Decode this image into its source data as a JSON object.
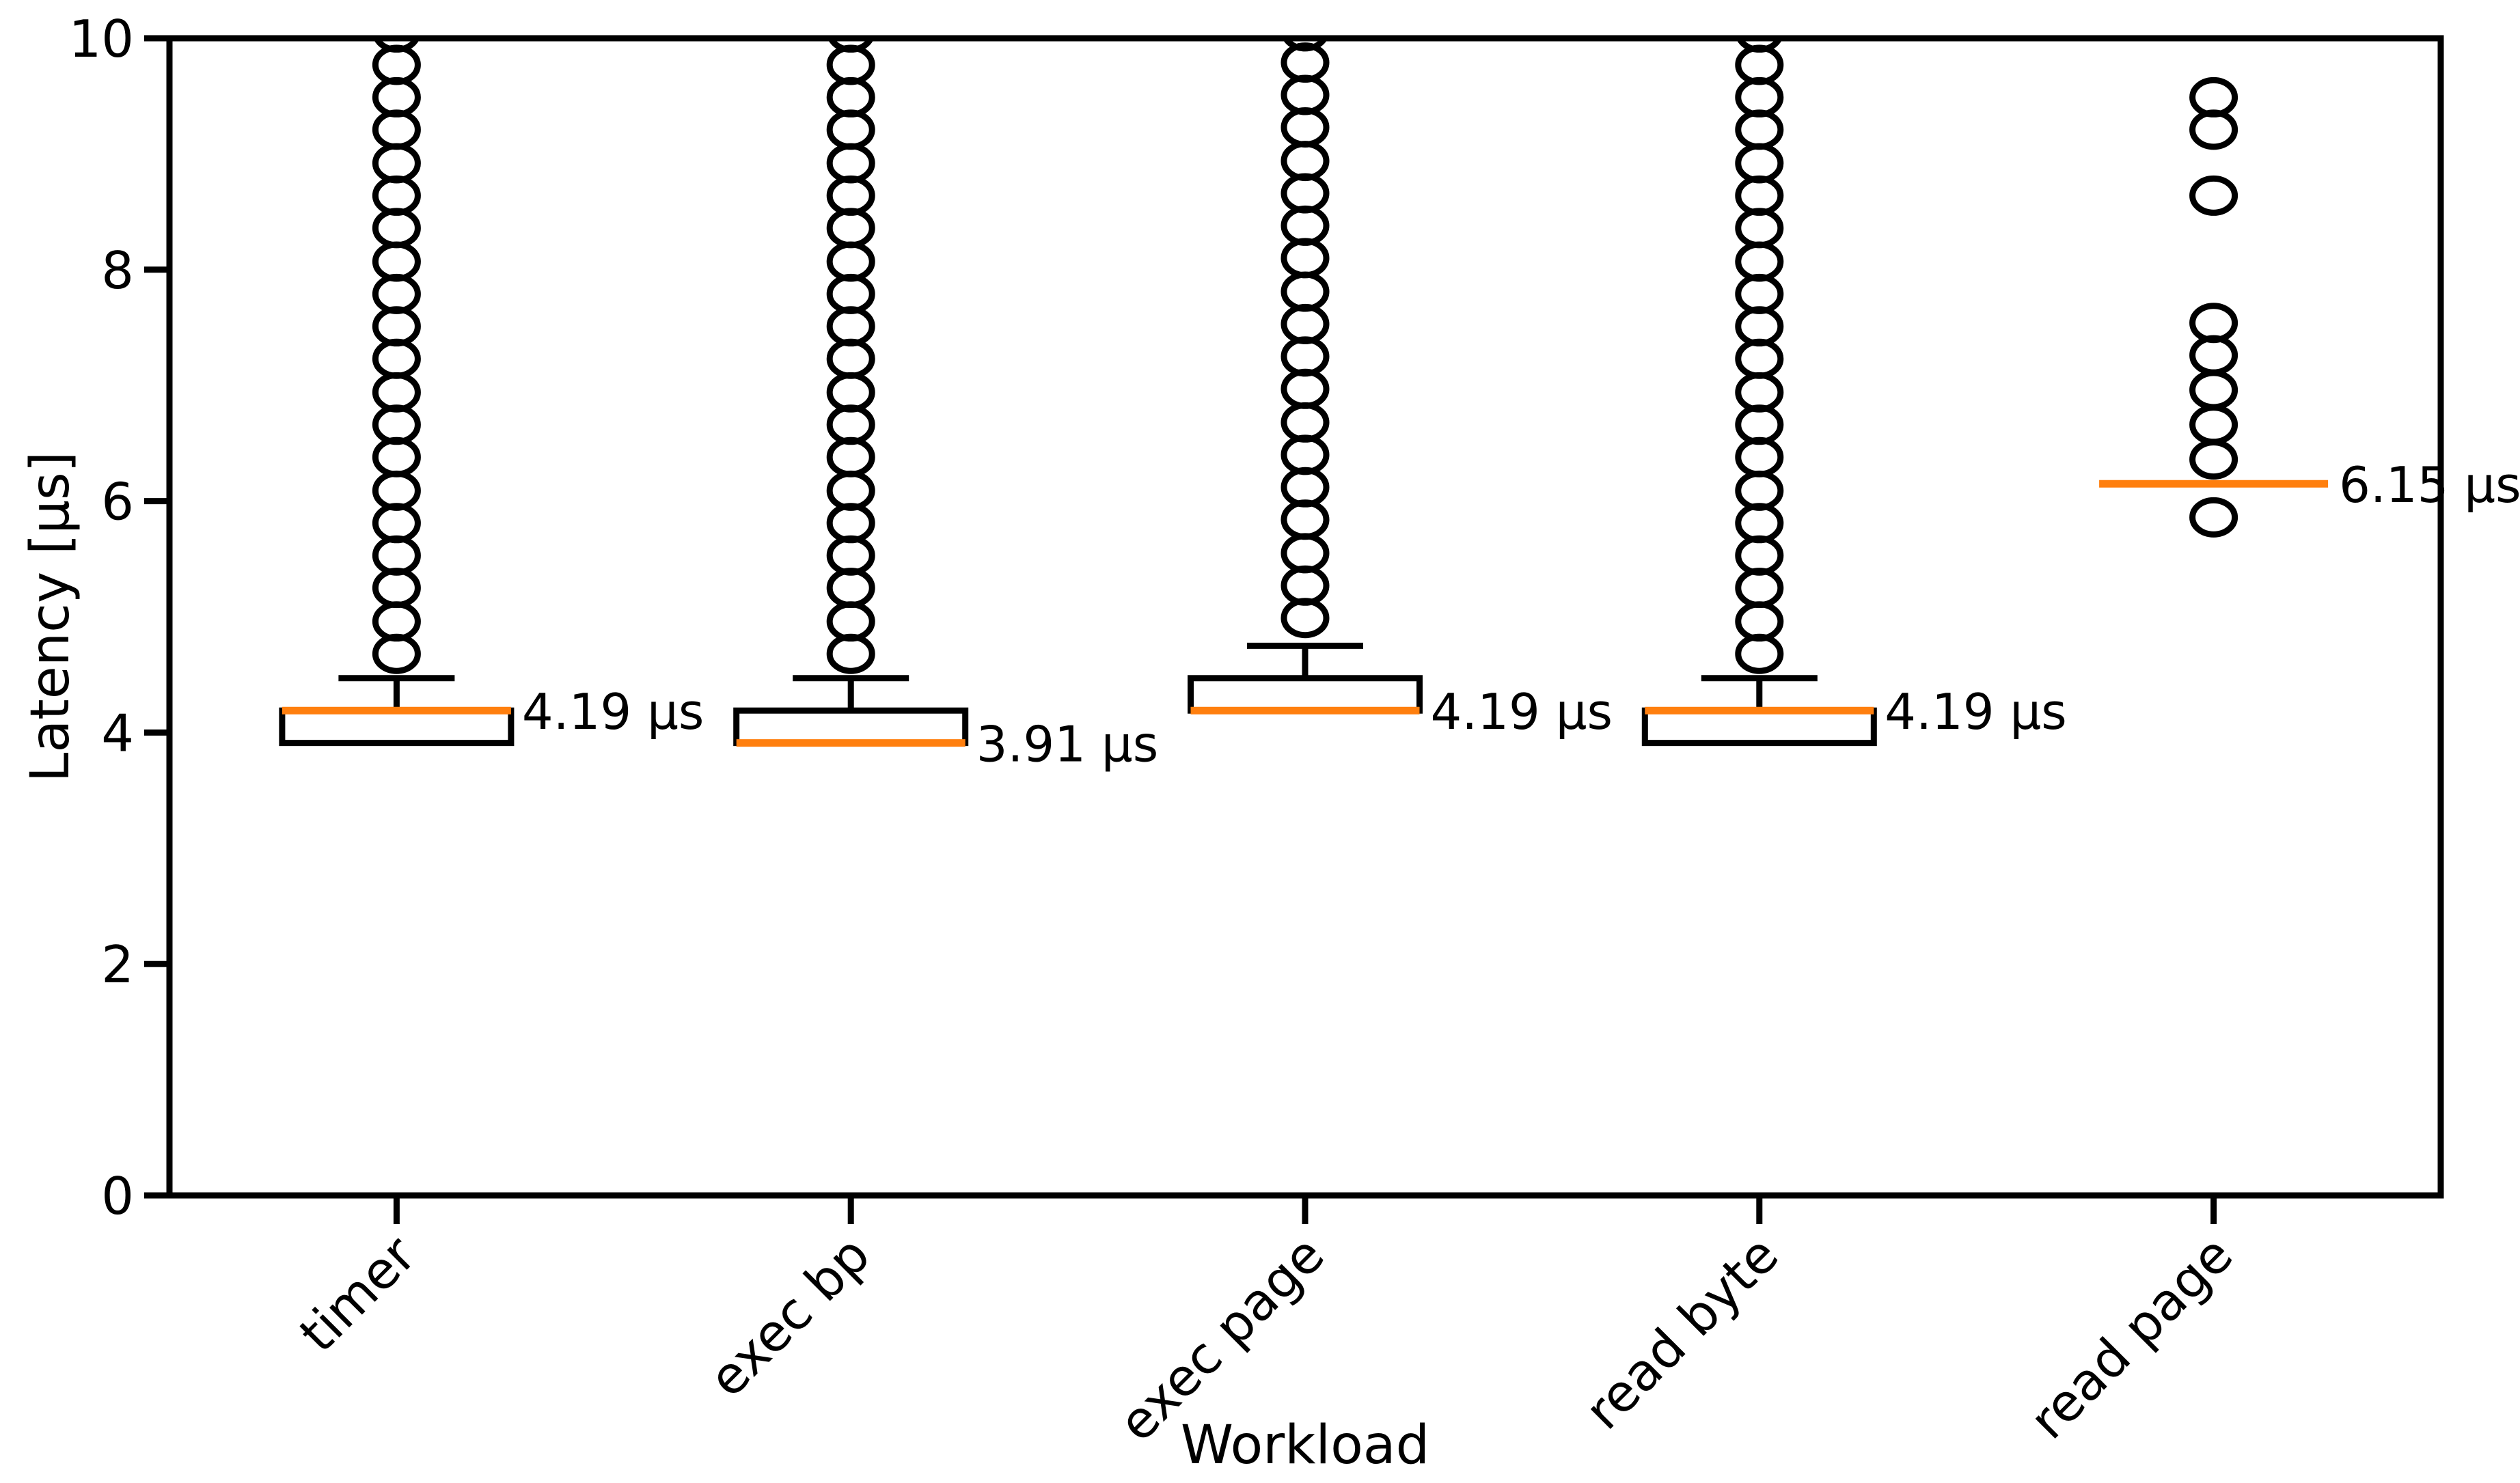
{
  "chart_data": {
    "type": "box",
    "title": "",
    "xlabel": "Workload",
    "ylabel": "Latency [µs]",
    "ylim": [
      0,
      10
    ],
    "yticks": [
      0,
      2,
      4,
      6,
      8,
      10
    ],
    "ytick_labels": [
      "0",
      "2",
      "4",
      "6",
      "8",
      "10"
    ],
    "categories": [
      "timer",
      "exec bp",
      "exec page",
      "read byte",
      "read page"
    ],
    "grid": false,
    "legend_position": "none",
    "colors": {
      "median": "#ff7f0e",
      "box_stroke": "#000000",
      "annotation_text": "#000000",
      "background": "#ffffff"
    },
    "boxes": [
      {
        "label": "timer",
        "q1": 3.91,
        "median": 4.19,
        "q3": 4.19,
        "whisker_low": null,
        "whisker_high": 4.47,
        "annotation": "4.19 µs",
        "outliers": [
          4.68,
          4.96,
          5.25,
          5.53,
          5.81,
          6.09,
          6.38,
          6.66,
          6.94,
          7.23,
          7.51,
          7.79,
          8.07,
          8.36,
          8.64,
          8.92,
          9.21,
          9.49,
          9.77,
          10.05
        ]
      },
      {
        "label": "exec bp",
        "q1": 3.91,
        "median": 3.91,
        "q3": 4.19,
        "whisker_low": null,
        "whisker_high": 4.47,
        "annotation": "3.91 µs",
        "outliers": [
          4.68,
          4.96,
          5.25,
          5.53,
          5.81,
          6.09,
          6.38,
          6.66,
          6.94,
          7.23,
          7.51,
          7.79,
          8.07,
          8.36,
          8.64,
          8.92,
          9.21,
          9.49,
          9.77,
          10.05
        ]
      },
      {
        "label": "exec page",
        "q1": 4.19,
        "median": 4.19,
        "q3": 4.47,
        "whisker_low": null,
        "whisker_high": 4.75,
        "annotation": "4.19 µs",
        "outliers": [
          4.99,
          5.27,
          5.55,
          5.84,
          6.12,
          6.4,
          6.68,
          6.97,
          7.25,
          7.53,
          7.81,
          8.1,
          8.38,
          8.66,
          8.94,
          9.23,
          9.51,
          9.79,
          10.06
        ]
      },
      {
        "label": "read byte",
        "q1": 3.91,
        "median": 4.19,
        "q3": 4.19,
        "whisker_low": null,
        "whisker_high": 4.47,
        "annotation": "4.19 µs",
        "outliers": [
          4.68,
          4.96,
          5.25,
          5.53,
          5.81,
          6.09,
          6.38,
          6.66,
          6.94,
          7.23,
          7.51,
          7.79,
          8.07,
          8.36,
          8.64,
          8.92,
          9.21,
          9.49,
          9.77,
          10.05
        ]
      },
      {
        "label": "read page",
        "q1": 6.15,
        "median": 6.15,
        "q3": 6.15,
        "whisker_low": null,
        "whisker_high": null,
        "annotation": "6.15 µs",
        "outliers": [
          5.86,
          6.36,
          6.66,
          6.96,
          7.26,
          7.54,
          8.64,
          9.21,
          9.49
        ]
      }
    ]
  }
}
